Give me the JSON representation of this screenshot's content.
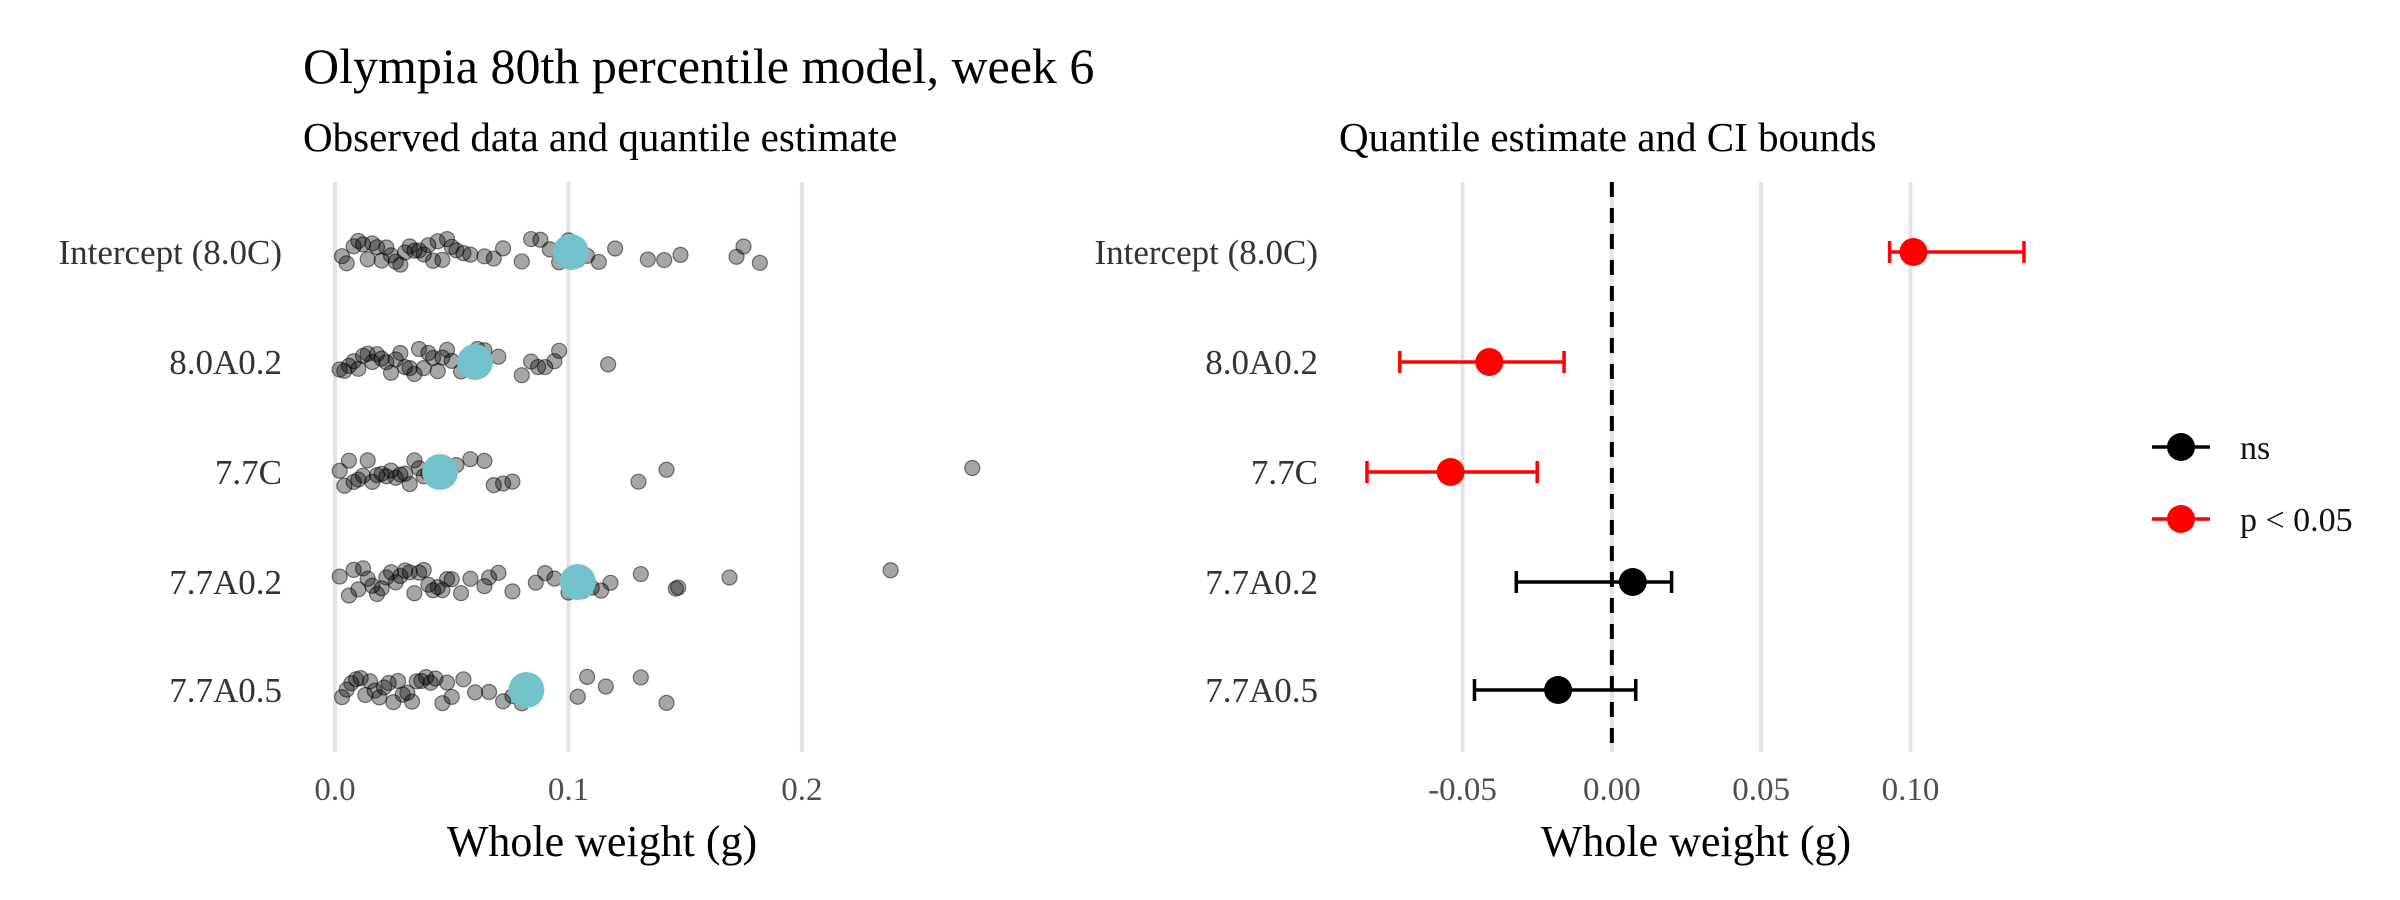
{
  "title": "Olympia 80th percentile model, week 6",
  "chart_data": [
    {
      "type": "scatter",
      "subtitle": "Observed data and quantile estimate",
      "xlabel": "Whole weight (g)",
      "ylabel": "",
      "xlim": [
        -0.003,
        0.29
      ],
      "xticks": [
        "0.0",
        "0.1",
        "0.2"
      ],
      "xtick_values": [
        0.0,
        0.1,
        0.2
      ],
      "grid": "vertical",
      "categories": [
        "Intercept (8.0C)",
        "8.0A0.2",
        "7.7C",
        "7.7A0.2",
        "7.7A0.5"
      ],
      "estimate_color": "#73C2CC",
      "point_color": "#000000",
      "point_opacity": 0.35,
      "quantile_estimates": [
        0.101,
        0.06,
        0.045,
        0.104,
        0.082
      ],
      "observations": [
        [
          0.003,
          0.005,
          0.008,
          0.01,
          0.012,
          0.014,
          0.016,
          0.018,
          0.02,
          0.022,
          0.024,
          0.026,
          0.028,
          0.03,
          0.032,
          0.034,
          0.036,
          0.038,
          0.04,
          0.042,
          0.044,
          0.046,
          0.048,
          0.05,
          0.052,
          0.055,
          0.058,
          0.064,
          0.068,
          0.072,
          0.08,
          0.084,
          0.088,
          0.092,
          0.096,
          0.1,
          0.104,
          0.108,
          0.113,
          0.12,
          0.134,
          0.141,
          0.148,
          0.172,
          0.175,
          0.182
        ],
        [
          0.002,
          0.004,
          0.006,
          0.008,
          0.01,
          0.012,
          0.014,
          0.016,
          0.018,
          0.02,
          0.022,
          0.024,
          0.026,
          0.028,
          0.03,
          0.032,
          0.034,
          0.036,
          0.038,
          0.04,
          0.042,
          0.044,
          0.046,
          0.048,
          0.05,
          0.054,
          0.058,
          0.061,
          0.064,
          0.07,
          0.08,
          0.084,
          0.087,
          0.09,
          0.094,
          0.096,
          0.117
        ],
        [
          0.002,
          0.004,
          0.006,
          0.008,
          0.01,
          0.012,
          0.014,
          0.016,
          0.018,
          0.02,
          0.022,
          0.024,
          0.026,
          0.028,
          0.03,
          0.032,
          0.034,
          0.036,
          0.038,
          0.04,
          0.042,
          0.044,
          0.046,
          0.048,
          0.052,
          0.058,
          0.064,
          0.068,
          0.072,
          0.076,
          0.13,
          0.142,
          0.273
        ],
        [
          0.002,
          0.006,
          0.008,
          0.01,
          0.012,
          0.014,
          0.016,
          0.018,
          0.02,
          0.022,
          0.024,
          0.026,
          0.028,
          0.03,
          0.032,
          0.034,
          0.036,
          0.038,
          0.04,
          0.042,
          0.044,
          0.046,
          0.048,
          0.05,
          0.054,
          0.058,
          0.064,
          0.066,
          0.07,
          0.076,
          0.086,
          0.09,
          0.094,
          0.1,
          0.106,
          0.11,
          0.114,
          0.118,
          0.131,
          0.146,
          0.147,
          0.169,
          0.238
        ],
        [
          0.003,
          0.005,
          0.007,
          0.009,
          0.011,
          0.013,
          0.015,
          0.017,
          0.019,
          0.021,
          0.023,
          0.025,
          0.027,
          0.029,
          0.031,
          0.033,
          0.035,
          0.037,
          0.039,
          0.041,
          0.043,
          0.046,
          0.048,
          0.05,
          0.055,
          0.06,
          0.066,
          0.072,
          0.076,
          0.08,
          0.104,
          0.108,
          0.116,
          0.131,
          0.142
        ]
      ]
    },
    {
      "type": "errorbar",
      "subtitle": "Quantile estimate and CI bounds",
      "xlabel": "Whole weight (g)",
      "ylabel": "",
      "xlim": [
        -0.084,
        0.135
      ],
      "xticks": [
        "-0.05",
        "0.00",
        "0.05",
        "0.10"
      ],
      "xtick_values": [
        -0.05,
        0.0,
        0.05,
        0.1
      ],
      "reference_line": 0,
      "grid": "vertical",
      "categories": [
        "Intercept (8.0C)",
        "8.0A0.2",
        "7.7C",
        "7.7A0.2",
        "7.7A0.5"
      ],
      "estimates": [
        0.101,
        -0.041,
        -0.054,
        0.007,
        -0.018
      ],
      "lower": [
        0.093,
        -0.071,
        -0.082,
        -0.032,
        -0.046
      ],
      "upper": [
        0.138,
        -0.016,
        -0.025,
        0.02,
        0.008
      ],
      "significance": [
        "p < 0.05",
        "p < 0.05",
        "p < 0.05",
        "ns",
        "ns"
      ],
      "legend": [
        {
          "label": "ns",
          "color": "#000000"
        },
        {
          "label": "p < 0.05",
          "color": "#FF0000"
        }
      ],
      "legend_position": "right"
    }
  ]
}
